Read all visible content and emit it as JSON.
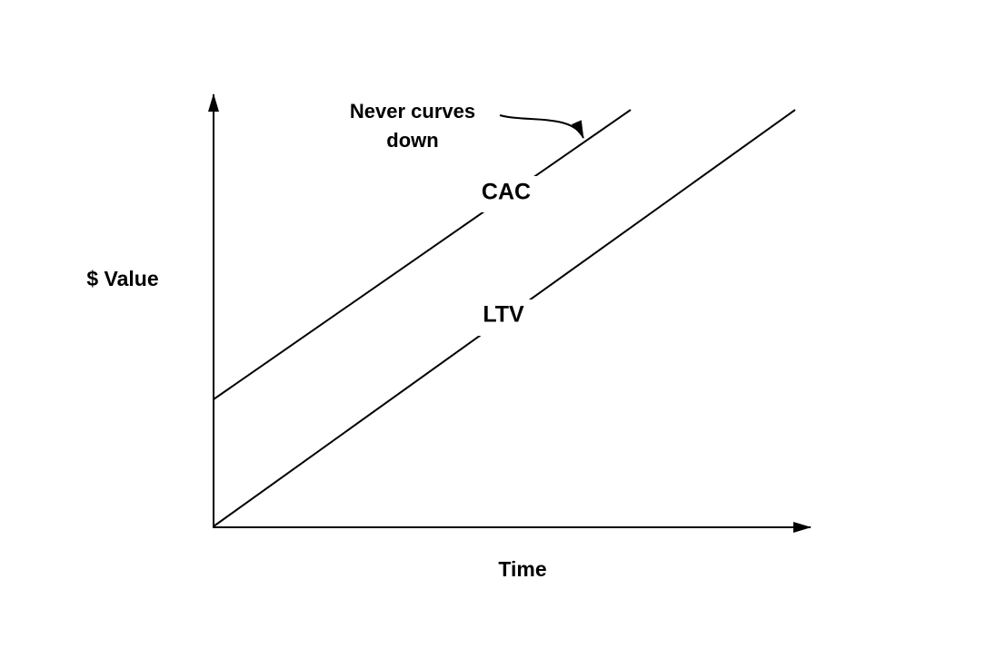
{
  "axes": {
    "y_label": "$ Value",
    "x_label": "Time"
  },
  "lines": [
    {
      "label": "CAC"
    },
    {
      "label": "LTV"
    }
  ],
  "annotation": {
    "lines": [
      "Never curves",
      "down"
    ]
  }
}
